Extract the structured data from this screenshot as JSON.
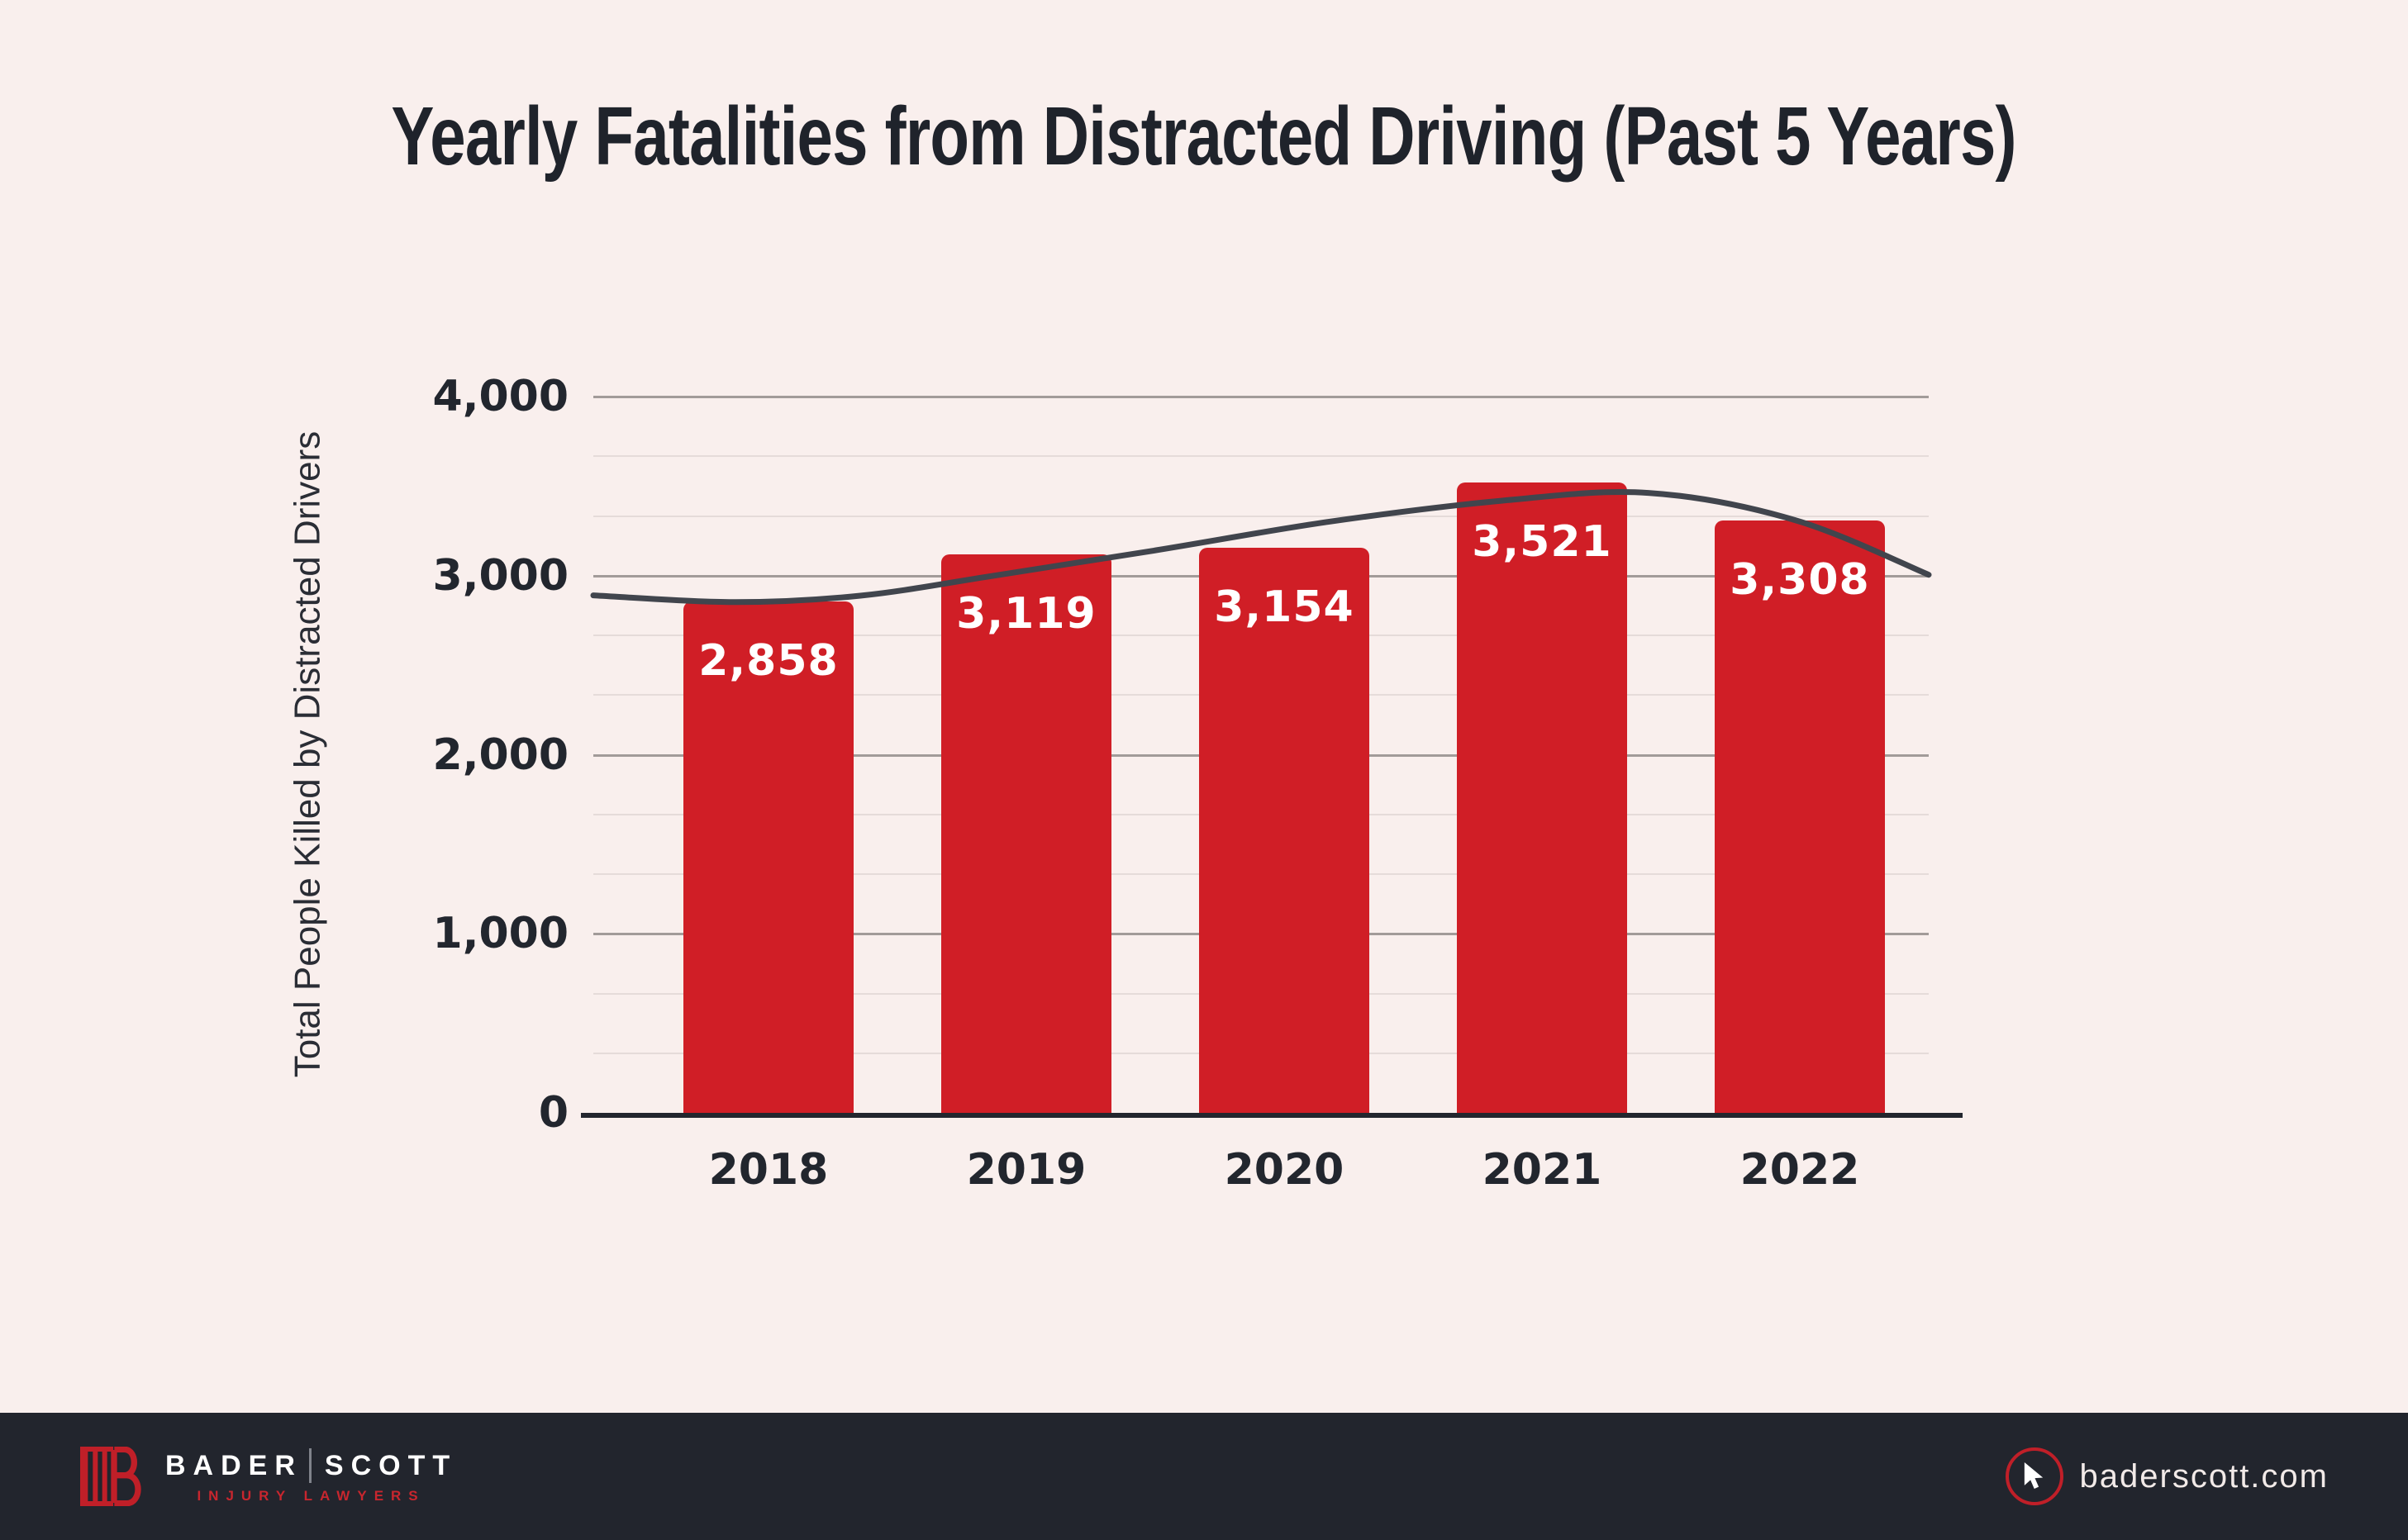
{
  "chart_data": {
    "type": "bar",
    "title": "Yearly Fatalities from Distracted Driving (Past 5 Years)",
    "categories": [
      "2018",
      "2019",
      "2020",
      "2021",
      "2022"
    ],
    "values": [
      2858,
      3119,
      3154,
      3521,
      3308
    ],
    "data_labels": [
      "2,858",
      "3,119",
      "3,154",
      "3,521",
      "3,308"
    ],
    "xlabel": "",
    "ylabel": "Total People Killed by Distracted Drivers",
    "ylim": [
      0,
      4000
    ],
    "yticks": [
      {
        "value": 0,
        "label": "0"
      },
      {
        "value": 1000,
        "label": "1,000"
      },
      {
        "value": 2000,
        "label": "2,000"
      },
      {
        "value": 3000,
        "label": "3,000"
      },
      {
        "value": 4000,
        "label": "4,000"
      }
    ],
    "minor_gridlines_between_major": 2,
    "grid": true,
    "legend": "none",
    "trend_line": {
      "description": "smooth trend curve over bars",
      "points": [
        {
          "t": 0.0,
          "v": 2890
        },
        {
          "t": 0.105,
          "v": 2852
        },
        {
          "t": 0.2,
          "v": 2888
        },
        {
          "t": 0.3,
          "v": 3000
        },
        {
          "t": 0.42,
          "v": 3140
        },
        {
          "t": 0.55,
          "v": 3300
        },
        {
          "t": 0.68,
          "v": 3418
        },
        {
          "t": 0.79,
          "v": 3462
        },
        {
          "t": 0.9,
          "v": 3310
        },
        {
          "t": 1.0,
          "v": 3005
        }
      ]
    }
  },
  "colors": {
    "background": "#f9efed",
    "bar": "#d01e26",
    "bar_label": "#ffffff",
    "trend_line": "#41454d",
    "grid_major": "#a29b99",
    "grid_minor": "#e5dbd9",
    "axis": "#23262e",
    "text_dark": "#22252d",
    "footer_background": "#22252d",
    "logo_red": "#c01f28",
    "website_text": "#f2eae8"
  },
  "footer": {
    "brand_primary": "BADER",
    "brand_secondary": "SCOTT",
    "brand_tagline": "INJURY LAWYERS",
    "website": "baderscott.com"
  }
}
